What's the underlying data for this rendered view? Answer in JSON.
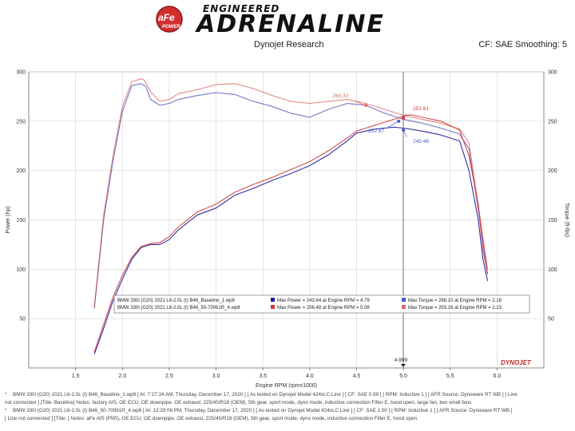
{
  "header": {
    "brand_small": "ENGINEERED",
    "brand_big": "ADRENALINE",
    "badge_top": "aFe",
    "badge_bottom": "POWER",
    "subtitle": "Dynojet Research",
    "cf": "CF: SAE Smoothing: 5"
  },
  "colors": {
    "baseline": "#1a1a9c",
    "modified": "#d23a3a",
    "grid": "#d8d8d8",
    "baseline_label": "#4a5bd0",
    "modified_label": "#e0686a"
  },
  "chart_data": {
    "type": "line",
    "xlabel": "Engine RPM (rpmx1000)",
    "ylabel_left": "Power (hp)",
    "ylabel_right": "Torque (ft-lbs)",
    "xlim": [
      1.0,
      6.5
    ],
    "ylim": [
      0,
      300
    ],
    "x_ticks": [
      1.5,
      2.0,
      2.5,
      3.0,
      3.5,
      4.0,
      4.5,
      5.0,
      5.5,
      6.0
    ],
    "y_ticks": [
      50,
      100,
      150,
      200,
      250,
      300
    ],
    "x_tick_labels": [
      "1.5",
      "2.0",
      "2.5",
      "3.0",
      "3.5",
      "4.0",
      "4.5",
      "5.0",
      "5.5",
      "6.0"
    ],
    "y_tick_labels_left": [
      "50",
      "100",
      "150",
      "200",
      "250",
      "300"
    ],
    "y_tick_labels_right": [
      "50",
      "100",
      "150",
      "200",
      "250",
      "300"
    ],
    "cursor": {
      "x": 4.999,
      "label": "4.999"
    },
    "series": [
      {
        "name": "BMW 330i (G20) 2021 L6-2.0L (t) B46_Baseline_1.wp8",
        "measure": "power",
        "x": [
          1.7,
          1.8,
          1.9,
          2.0,
          2.1,
          2.2,
          2.3,
          2.4,
          2.5,
          2.6,
          2.8,
          3.0,
          3.2,
          3.4,
          3.6,
          3.8,
          4.0,
          4.2,
          4.4,
          4.5,
          4.6,
          4.7,
          4.8,
          4.9,
          5.0,
          5.2,
          5.4,
          5.6,
          5.7,
          5.8,
          5.85,
          5.9
        ],
        "values": [
          14,
          40,
          68,
          90,
          110,
          122,
          125,
          125,
          130,
          140,
          155,
          162,
          175,
          182,
          190,
          197,
          205,
          216,
          230,
          238,
          240,
          242,
          243,
          244,
          243,
          240,
          236,
          230,
          200,
          150,
          110,
          88
        ]
      },
      {
        "name": "BMW 330i (G20) 2021 L6-2.0L (t) B46_Baseline_1.wp8",
        "measure": "torque",
        "x": [
          1.7,
          1.8,
          1.9,
          2.0,
          2.1,
          2.2,
          2.25,
          2.3,
          2.4,
          2.5,
          2.6,
          2.8,
          3.0,
          3.2,
          3.4,
          3.6,
          3.8,
          4.0,
          4.2,
          4.4,
          4.6,
          4.8,
          5.0,
          5.2,
          5.4,
          5.6,
          5.7,
          5.8,
          5.9
        ],
        "values": [
          60,
          150,
          210,
          260,
          286,
          288,
          285,
          272,
          266,
          268,
          272,
          276,
          279,
          277,
          270,
          265,
          258,
          254,
          262,
          268,
          266,
          258,
          252,
          248,
          243,
          237,
          222,
          160,
          95
        ]
      },
      {
        "name": "BMW 330i (G20) 2021 L6-2.0L (t) B46_50-70061R_4.wp8",
        "measure": "power",
        "x": [
          1.7,
          1.8,
          1.9,
          2.0,
          2.1,
          2.2,
          2.3,
          2.4,
          2.5,
          2.6,
          2.8,
          3.0,
          3.2,
          3.4,
          3.6,
          3.8,
          4.0,
          4.2,
          4.4,
          4.5,
          4.6,
          4.7,
          4.8,
          4.9,
          5.0,
          5.08,
          5.2,
          5.4,
          5.6,
          5.7,
          5.8,
          5.85,
          5.9
        ],
        "values": [
          16,
          44,
          72,
          94,
          112,
          123,
          126,
          127,
          133,
          143,
          158,
          166,
          178,
          186,
          193,
          201,
          209,
          220,
          233,
          240,
          243,
          246,
          249,
          252,
          255,
          256.5,
          254,
          250,
          241,
          215,
          165,
          120,
          95
        ]
      },
      {
        "name": "BMW 330i (G20) 2021 L6-2.0L (t) B46_50-70061R_4.wp8",
        "measure": "torque",
        "x": [
          1.7,
          1.8,
          1.9,
          2.0,
          2.1,
          2.2,
          2.23,
          2.3,
          2.4,
          2.5,
          2.6,
          2.8,
          3.0,
          3.2,
          3.4,
          3.6,
          3.8,
          4.0,
          4.2,
          4.4,
          4.6,
          4.8,
          5.0,
          5.2,
          5.4,
          5.6,
          5.7,
          5.8,
          5.9
        ],
        "values": [
          62,
          155,
          215,
          265,
          290,
          293,
          292,
          280,
          270,
          272,
          278,
          282,
          287,
          288,
          283,
          276,
          270,
          268,
          270,
          272,
          268,
          262,
          256,
          252,
          248,
          242,
          228,
          165,
          100
        ]
      }
    ],
    "annotations": [
      {
        "text": "264.33",
        "series": "modified-torque",
        "x": 4.6,
        "y": 266
      },
      {
        "text": "251.61",
        "series": "modified-power",
        "x": 5.0,
        "y": 253
      },
      {
        "text": "252.67",
        "series": "baseline-torque",
        "x": 4.95,
        "y": 250
      },
      {
        "text": "240.48",
        "series": "baseline-power",
        "x": 5.0,
        "y": 241
      }
    ],
    "legend": {
      "placement": "bottom-center",
      "rows": [
        {
          "file": "BMW 330i (G20) 2021 L6-2.0L (t) B46_Baseline_1.wp8",
          "power": "Max Power = 243.64 at Engine RPM = 4.79",
          "torque": "Max Torque = 288.10 at Engine RPM = 2.18"
        },
        {
          "file": "BMW 330i (G20) 2021 L6-2.0L (t) B46_50-70061R_4.wp8",
          "power": "Max Power = 256.48 at Engine RPM = 5.08",
          "torque": "Max Torque = 293.16 at Engine RPM = 2.23"
        }
      ]
    },
    "watermark": "DYNOJET"
  },
  "footer": {
    "line1": "BMW 330i (G20) 2021 L6-2.0L (t) B46_Baseline_1.wp8 [ At: 7:27:34 AM, Thursday, December 17, 2020 ] [ As tested on Dynojet Model 424xLC Line ] [ CF: SAE 0.99 ] [ RPM: Inductive 1 ] [ AFR Source: Dynoware RT WB ] [ Line",
    "line2": "not connected ] [Title: Baseline] Notes: factory AIS, OE ECU, OE downpipe, OE exhaust, 225/45/R18 (OEM), 5th gear, sport mode, dyno mode, inductive connection Filter E, hood open, large fan, two small fans",
    "line3": "BMW 330i (G20) 2021 L6-2.0L (t) B46_50-70061R_4.wp8 [ At: 12:29:06 PM, Thursday, December 17, 2020 ] [ As tested on Dynojet Model 424xLC Line ] [ CF: SAE 1.00 ] [ RPM: Inductive 1 ] [ AFR Source: Dynoware RT WB ]",
    "line4": "[ Line not connected ] [Title: ] Notes: aFe AIS (P5R), OE ECU, OE downpipe, OE exhaust, 225/45/R18 (OEM), 5th gear, sport mode, dyno mode, inductive connection Filter E, hood open"
  }
}
